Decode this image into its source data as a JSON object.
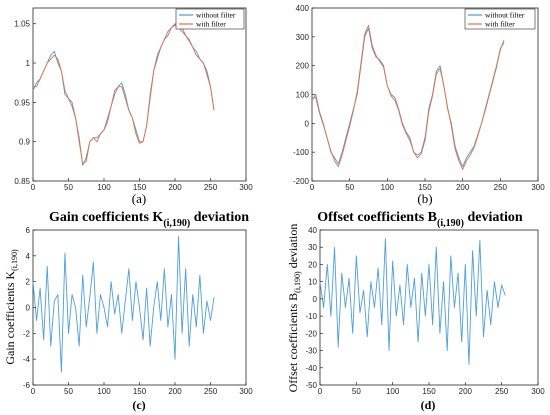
{
  "colors": {
    "blue": "#4a9bd6",
    "orange": "#e8703a",
    "axis": "#262626",
    "single": "#4f9fd8"
  },
  "charts": [
    {
      "id": "a",
      "caption": "(a)",
      "legend": [
        "without filter",
        "with filter"
      ],
      "xticks": [
        "0",
        "50",
        "100",
        "150",
        "200",
        "250",
        "300"
      ],
      "yticks": [
        "0.85",
        "0.9",
        "0.95",
        "1",
        "1.05"
      ]
    },
    {
      "id": "b",
      "caption": "(b)",
      "legend": [
        "without filter",
        "with filter"
      ],
      "xticks": [
        "0",
        "50",
        "100",
        "150",
        "200",
        "250",
        "300"
      ],
      "yticks": [
        "-200",
        "-100",
        "0",
        "100",
        "200",
        "300",
        "400"
      ]
    },
    {
      "id": "c",
      "caption": "(c)",
      "title": "Gain coefficients K",
      "title_sub": "(i,190)",
      "title_tail": " deviation",
      "ylabel": "Gain coefficients K",
      "ylabel_sub": "(i,190)",
      "xticks": [
        "0",
        "50",
        "100",
        "150",
        "200",
        "250",
        "300"
      ],
      "yticks": [
        "-6",
        "-4",
        "-2",
        "0",
        "2",
        "4",
        "6"
      ]
    },
    {
      "id": "d",
      "caption": "(d)",
      "title": "Offset coefficients B",
      "title_sub": "(i,190)",
      "title_tail": " deviation",
      "ylabel": "Offset coefficients B",
      "ylabel_sub": "(i,190)",
      "ylabel_tail": " deviation",
      "xticks": [
        "0",
        "50",
        "100",
        "150",
        "200",
        "250",
        "300"
      ],
      "yticks": [
        "-50",
        "-40",
        "-30",
        "-20",
        "-10",
        "0",
        "10",
        "20",
        "30",
        "40"
      ]
    }
  ],
  "chart_data": [
    {
      "type": "line",
      "xlim": [
        0,
        300
      ],
      "ylim": [
        0.85,
        1.07
      ],
      "grid": false,
      "legend_position": "top-right",
      "series": [
        {
          "name": "without filter",
          "color": "#4a9bd6",
          "x": [
            0,
            5,
            10,
            15,
            20,
            25,
            30,
            35,
            40,
            45,
            50,
            55,
            60,
            65,
            70,
            75,
            80,
            85,
            90,
            95,
            100,
            105,
            110,
            115,
            120,
            125,
            130,
            135,
            140,
            145,
            150,
            155,
            160,
            165,
            170,
            175,
            180,
            185,
            190,
            195,
            200,
            205,
            210,
            215,
            220,
            225,
            230,
            235,
            240,
            245,
            250,
            255
          ],
          "y": [
            0.965,
            0.975,
            0.98,
            0.99,
            1.0,
            1.01,
            1.015,
            1.0,
            0.99,
            0.96,
            0.955,
            0.95,
            0.93,
            0.905,
            0.87,
            0.88,
            0.9,
            0.905,
            0.905,
            0.91,
            0.915,
            0.93,
            0.945,
            0.96,
            0.97,
            0.975,
            0.96,
            0.94,
            0.93,
            0.915,
            0.9,
            0.9,
            0.92,
            0.96,
            0.99,
            1.01,
            1.02,
            1.03,
            1.04,
            1.045,
            1.05,
            1.045,
            1.045,
            1.035,
            1.03,
            1.02,
            1.015,
            1.005,
            1.0,
            0.99,
            0.97,
            0.94
          ]
        },
        {
          "name": "with filter",
          "color": "#e8703a",
          "x": [
            0,
            5,
            10,
            15,
            20,
            25,
            30,
            35,
            40,
            45,
            50,
            55,
            60,
            65,
            70,
            75,
            80,
            85,
            90,
            95,
            100,
            105,
            110,
            115,
            120,
            125,
            130,
            135,
            140,
            145,
            150,
            155,
            160,
            165,
            170,
            175,
            180,
            185,
            190,
            195,
            200,
            205,
            210,
            215,
            220,
            225,
            230,
            235,
            240,
            245,
            250,
            255
          ],
          "y": [
            0.97,
            0.97,
            0.98,
            0.99,
            1.0,
            1.005,
            1.01,
            1.005,
            0.99,
            0.965,
            0.955,
            0.945,
            0.93,
            0.9,
            0.872,
            0.875,
            0.9,
            0.905,
            0.9,
            0.91,
            0.915,
            0.925,
            0.945,
            0.965,
            0.97,
            0.97,
            0.955,
            0.94,
            0.93,
            0.91,
            0.898,
            0.9,
            0.92,
            0.955,
            0.99,
            1.005,
            1.02,
            1.03,
            1.035,
            1.045,
            1.048,
            1.045,
            1.04,
            1.035,
            1.028,
            1.02,
            1.01,
            1.005,
            1.0,
            0.985,
            0.97,
            0.94
          ]
        }
      ]
    },
    {
      "type": "line",
      "xlim": [
        0,
        300
      ],
      "ylim": [
        -200,
        400
      ],
      "grid": false,
      "legend_position": "top-right",
      "series": [
        {
          "name": "without filter",
          "color": "#4a9bd6",
          "x": [
            0,
            5,
            10,
            15,
            20,
            25,
            30,
            35,
            40,
            45,
            50,
            55,
            60,
            65,
            70,
            75,
            80,
            85,
            90,
            95,
            100,
            105,
            110,
            115,
            120,
            125,
            130,
            135,
            140,
            145,
            150,
            155,
            160,
            165,
            170,
            175,
            180,
            185,
            190,
            195,
            200,
            205,
            210,
            215,
            220,
            225,
            230,
            235,
            240,
            245,
            250,
            255
          ],
          "y": [
            80,
            100,
            40,
            0,
            -50,
            -100,
            -120,
            -140,
            -100,
            -50,
            0,
            50,
            100,
            200,
            300,
            330,
            260,
            230,
            220,
            200,
            130,
            100,
            90,
            50,
            0,
            -30,
            -50,
            -100,
            -110,
            -100,
            -50,
            50,
            100,
            180,
            200,
            130,
            50,
            0,
            -80,
            -120,
            -150,
            -120,
            -100,
            -80,
            -40,
            0,
            50,
            100,
            150,
            200,
            260,
            280
          ]
        },
        {
          "name": "with filter",
          "color": "#e8703a",
          "x": [
            0,
            5,
            10,
            15,
            20,
            25,
            30,
            35,
            40,
            45,
            50,
            55,
            60,
            65,
            70,
            75,
            80,
            85,
            90,
            95,
            100,
            105,
            110,
            115,
            120,
            125,
            130,
            135,
            140,
            145,
            150,
            155,
            160,
            165,
            170,
            175,
            180,
            185,
            190,
            195,
            200,
            205,
            210,
            215,
            220,
            225,
            230,
            235,
            240,
            245,
            250,
            255
          ],
          "y": [
            85,
            90,
            35,
            -5,
            -50,
            -95,
            -130,
            -150,
            -110,
            -60,
            -10,
            45,
            110,
            210,
            310,
            340,
            270,
            235,
            215,
            195,
            130,
            95,
            80,
            45,
            -5,
            -35,
            -60,
            -100,
            -120,
            -105,
            -60,
            40,
            95,
            170,
            190,
            130,
            55,
            -10,
            -90,
            -130,
            -160,
            -130,
            -110,
            -85,
            -45,
            0,
            45,
            95,
            145,
            195,
            255,
            290
          ]
        }
      ]
    },
    {
      "type": "line",
      "xlim": [
        0,
        300
      ],
      "ylim": [
        -6,
        6
      ],
      "grid": false,
      "series": [
        {
          "color": "#4f9fd8",
          "x": [
            0,
            5,
            10,
            15,
            20,
            25,
            30,
            35,
            40,
            45,
            50,
            55,
            60,
            65,
            70,
            75,
            80,
            85,
            90,
            95,
            100,
            105,
            110,
            115,
            120,
            125,
            130,
            135,
            140,
            145,
            150,
            155,
            160,
            165,
            170,
            175,
            180,
            185,
            190,
            195,
            200,
            205,
            210,
            215,
            220,
            225,
            230,
            235,
            240,
            245,
            250,
            255
          ],
          "y": [
            2,
            -1,
            1.5,
            -2.5,
            3.2,
            -3,
            0.5,
            1,
            -5,
            4.2,
            -2,
            1,
            0,
            -3,
            2.5,
            -1.5,
            0.8,
            3.5,
            -2,
            1,
            0,
            -1.5,
            2,
            -0.5,
            1,
            -2,
            0.5,
            3,
            -1,
            2,
            0,
            -2.5,
            1.5,
            -3,
            0,
            2,
            -1,
            3,
            -1.5,
            1,
            -4,
            5.5,
            -2,
            3,
            -3,
            1,
            -1.5,
            2.5,
            -2,
            0.5,
            -1,
            0.8
          ]
        }
      ]
    },
    {
      "type": "line",
      "xlim": [
        0,
        300
      ],
      "ylim": [
        -50,
        40
      ],
      "grid": false,
      "series": [
        {
          "color": "#4f9fd8",
          "x": [
            0,
            5,
            10,
            15,
            20,
            25,
            30,
            35,
            40,
            45,
            50,
            55,
            60,
            65,
            70,
            75,
            80,
            85,
            90,
            95,
            100,
            105,
            110,
            115,
            120,
            125,
            130,
            135,
            140,
            145,
            150,
            155,
            160,
            165,
            170,
            175,
            180,
            185,
            190,
            195,
            200,
            205,
            210,
            215,
            220,
            225,
            230,
            235,
            240,
            245,
            250,
            255
          ],
          "y": [
            10,
            -5,
            20,
            -10,
            30,
            -28,
            15,
            -5,
            12,
            -20,
            25,
            -8,
            5,
            -22,
            10,
            -5,
            18,
            -15,
            35,
            -30,
            22,
            -10,
            8,
            -15,
            20,
            -5,
            12,
            -25,
            15,
            -10,
            20,
            -15,
            30,
            -20,
            10,
            -30,
            25,
            -5,
            15,
            -25,
            20,
            -38,
            28,
            -10,
            34,
            -22,
            5,
            -15,
            10,
            -5,
            8,
            2
          ]
        }
      ]
    }
  ]
}
